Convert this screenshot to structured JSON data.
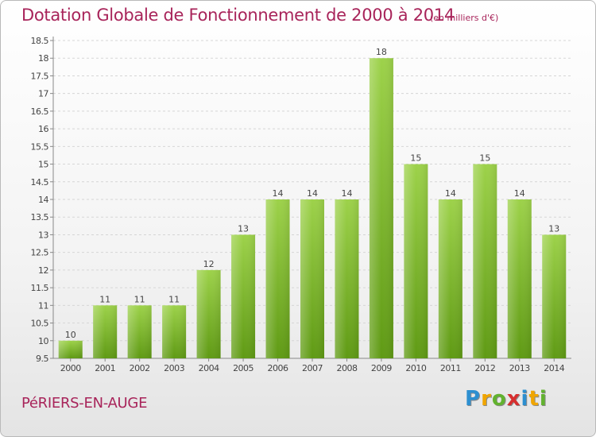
{
  "chart_data": {
    "type": "bar",
    "title": "Dotation Globale de Fonctionnement de 2000 à 2014",
    "subtitle": "(en milliers d'€)",
    "categories": [
      "2000",
      "2001",
      "2002",
      "2003",
      "2004",
      "2005",
      "2006",
      "2007",
      "2008",
      "2009",
      "2010",
      "2011",
      "2012",
      "2013",
      "2014"
    ],
    "values": [
      10,
      11,
      11,
      11,
      12,
      13,
      14,
      14,
      14,
      18,
      15,
      14,
      15,
      14,
      13
    ],
    "ylim": [
      9.5,
      18.5
    ],
    "yticks": [
      "9.5",
      "10",
      "10.5",
      "11",
      "11.5",
      "12",
      "12.5",
      "13",
      "13.5",
      "14",
      "14.5",
      "15",
      "15.5",
      "16",
      "16.5",
      "17",
      "17.5",
      "18",
      "18.5"
    ],
    "xlabel": "",
    "ylabel": "",
    "grid": true,
    "bar_color_top": "#9dd24a",
    "bar_color_bottom": "#5f9a14"
  },
  "footer": {
    "commune": "PéRIERS-EN-AUGE",
    "logo": [
      "P",
      "r",
      "o",
      "x",
      "i",
      "t",
      "i"
    ],
    "logo_colors": [
      "#2d8fd0",
      "#f0a500",
      "#62b22f",
      "#d62f2f",
      "#2d8fd0",
      "#f0a500",
      "#62b22f"
    ]
  }
}
